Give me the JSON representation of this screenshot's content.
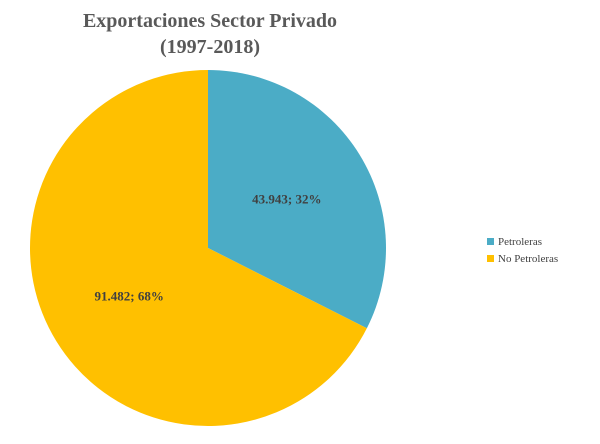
{
  "chart_data": {
    "type": "pie",
    "title_lines": [
      "Exportaciones Sector Privado",
      "(1997-2018)"
    ],
    "categories": [
      "Petroleras",
      "No Petroleras"
    ],
    "values": [
      43943,
      91482
    ],
    "value_labels": [
      "43.943",
      "91.482"
    ],
    "percent_labels": [
      "32%",
      "68%"
    ],
    "data_labels": [
      "43.943; 32%",
      "91.482; 68%"
    ],
    "colors": [
      "#4BACC6",
      "#FFC000"
    ],
    "start_angle_deg": 0,
    "direction": "clockwise",
    "legend_position": "right"
  }
}
